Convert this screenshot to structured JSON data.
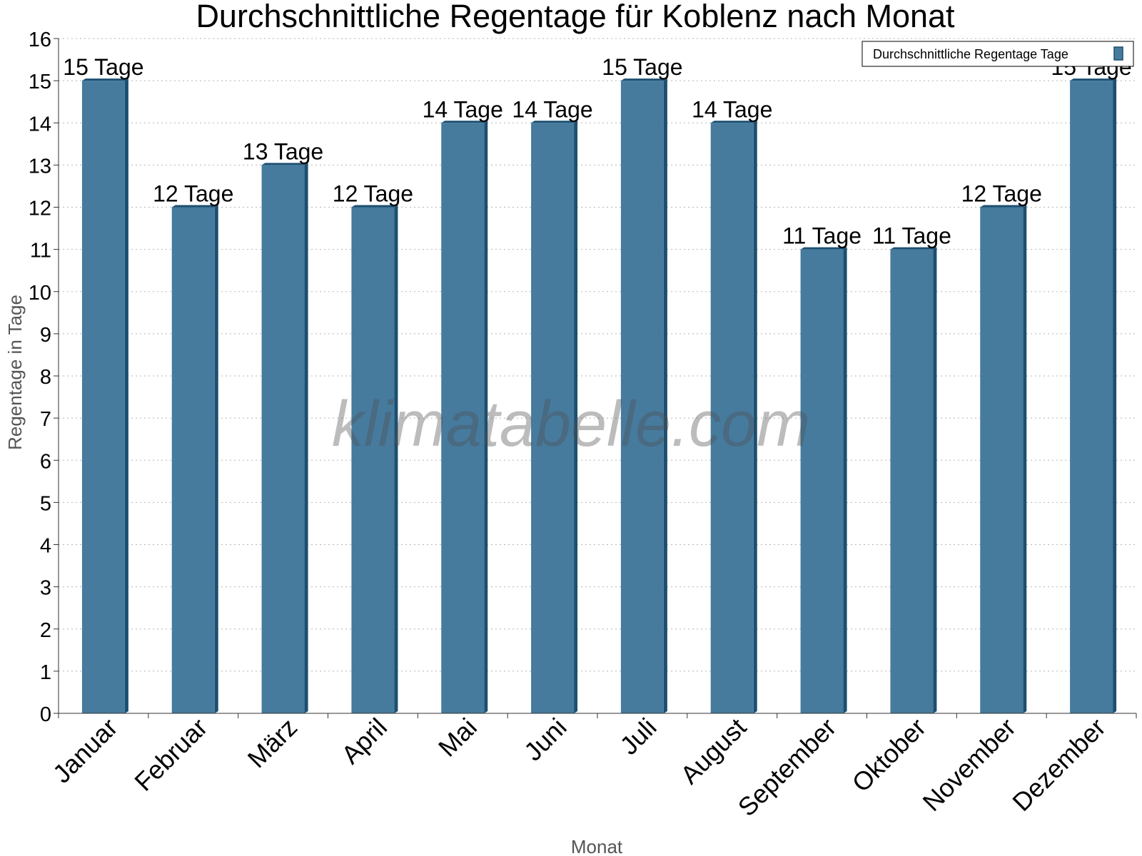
{
  "chart_data": {
    "type": "bar",
    "title": "Durchschnittliche Regentage für Koblenz nach Monat",
    "xlabel": "Monat",
    "ylabel": "Regentage in Tage",
    "categories": [
      "Januar",
      "Februar",
      "März",
      "April",
      "Mai",
      "Juni",
      "Juli",
      "August",
      "September",
      "Oktober",
      "November",
      "Dezember"
    ],
    "series": [
      {
        "name": "Durchschnittliche Regentage Tage",
        "values": [
          15,
          12,
          13,
          12,
          14,
          14,
          15,
          14,
          11,
          11,
          12,
          15
        ],
        "color": "#467b9e",
        "edge_color": "#1c4f70"
      }
    ],
    "data_labels": [
      "15 Tage",
      "12 Tage",
      "13 Tage",
      "12 Tage",
      "14 Tage",
      "14 Tage",
      "15 Tage",
      "14 Tage",
      "11 Tage",
      "11 Tage",
      "12 Tage",
      "15 Tage"
    ],
    "ylim": [
      0,
      16
    ],
    "yticks": [
      0,
      1,
      2,
      3,
      4,
      5,
      6,
      7,
      8,
      9,
      10,
      11,
      12,
      13,
      14,
      15,
      16
    ],
    "grid": true,
    "legend_position": "top-right",
    "watermark": "klimatabelle.com"
  }
}
